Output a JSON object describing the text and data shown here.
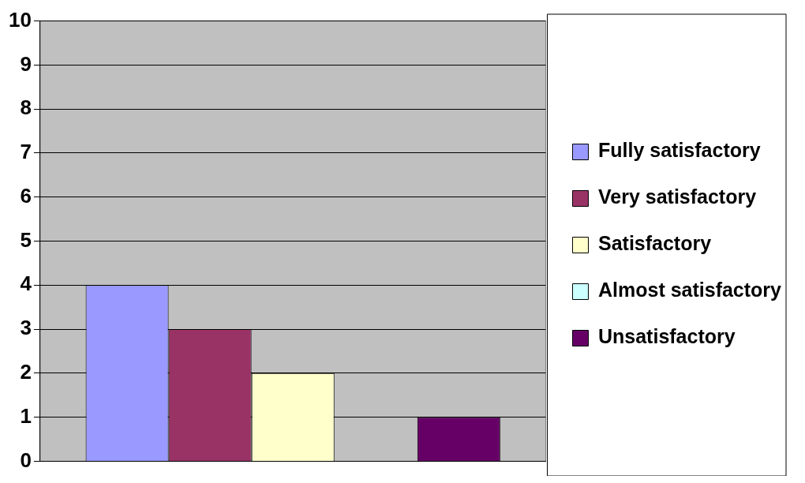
{
  "chart_data": {
    "type": "bar",
    "categories": [
      null
    ],
    "series": [
      {
        "name": "Fully satisfactory",
        "color": "#9999ff",
        "values": [
          4
        ]
      },
      {
        "name": "Very satisfactory",
        "color": "#993366",
        "values": [
          3
        ]
      },
      {
        "name": "Satisfactory",
        "color": "#ffffcc",
        "values": [
          2
        ]
      },
      {
        "name": "Almost satisfactory",
        "color": "#ccffff",
        "values": [
          0
        ]
      },
      {
        "name": "Unsatisfactory",
        "color": "#660066",
        "values": [
          1
        ]
      }
    ],
    "ylim": [
      0,
      10
    ],
    "yticks": [
      0,
      1,
      2,
      3,
      4,
      5,
      6,
      7,
      8,
      9,
      10
    ],
    "grid": "y",
    "legend": "right"
  }
}
